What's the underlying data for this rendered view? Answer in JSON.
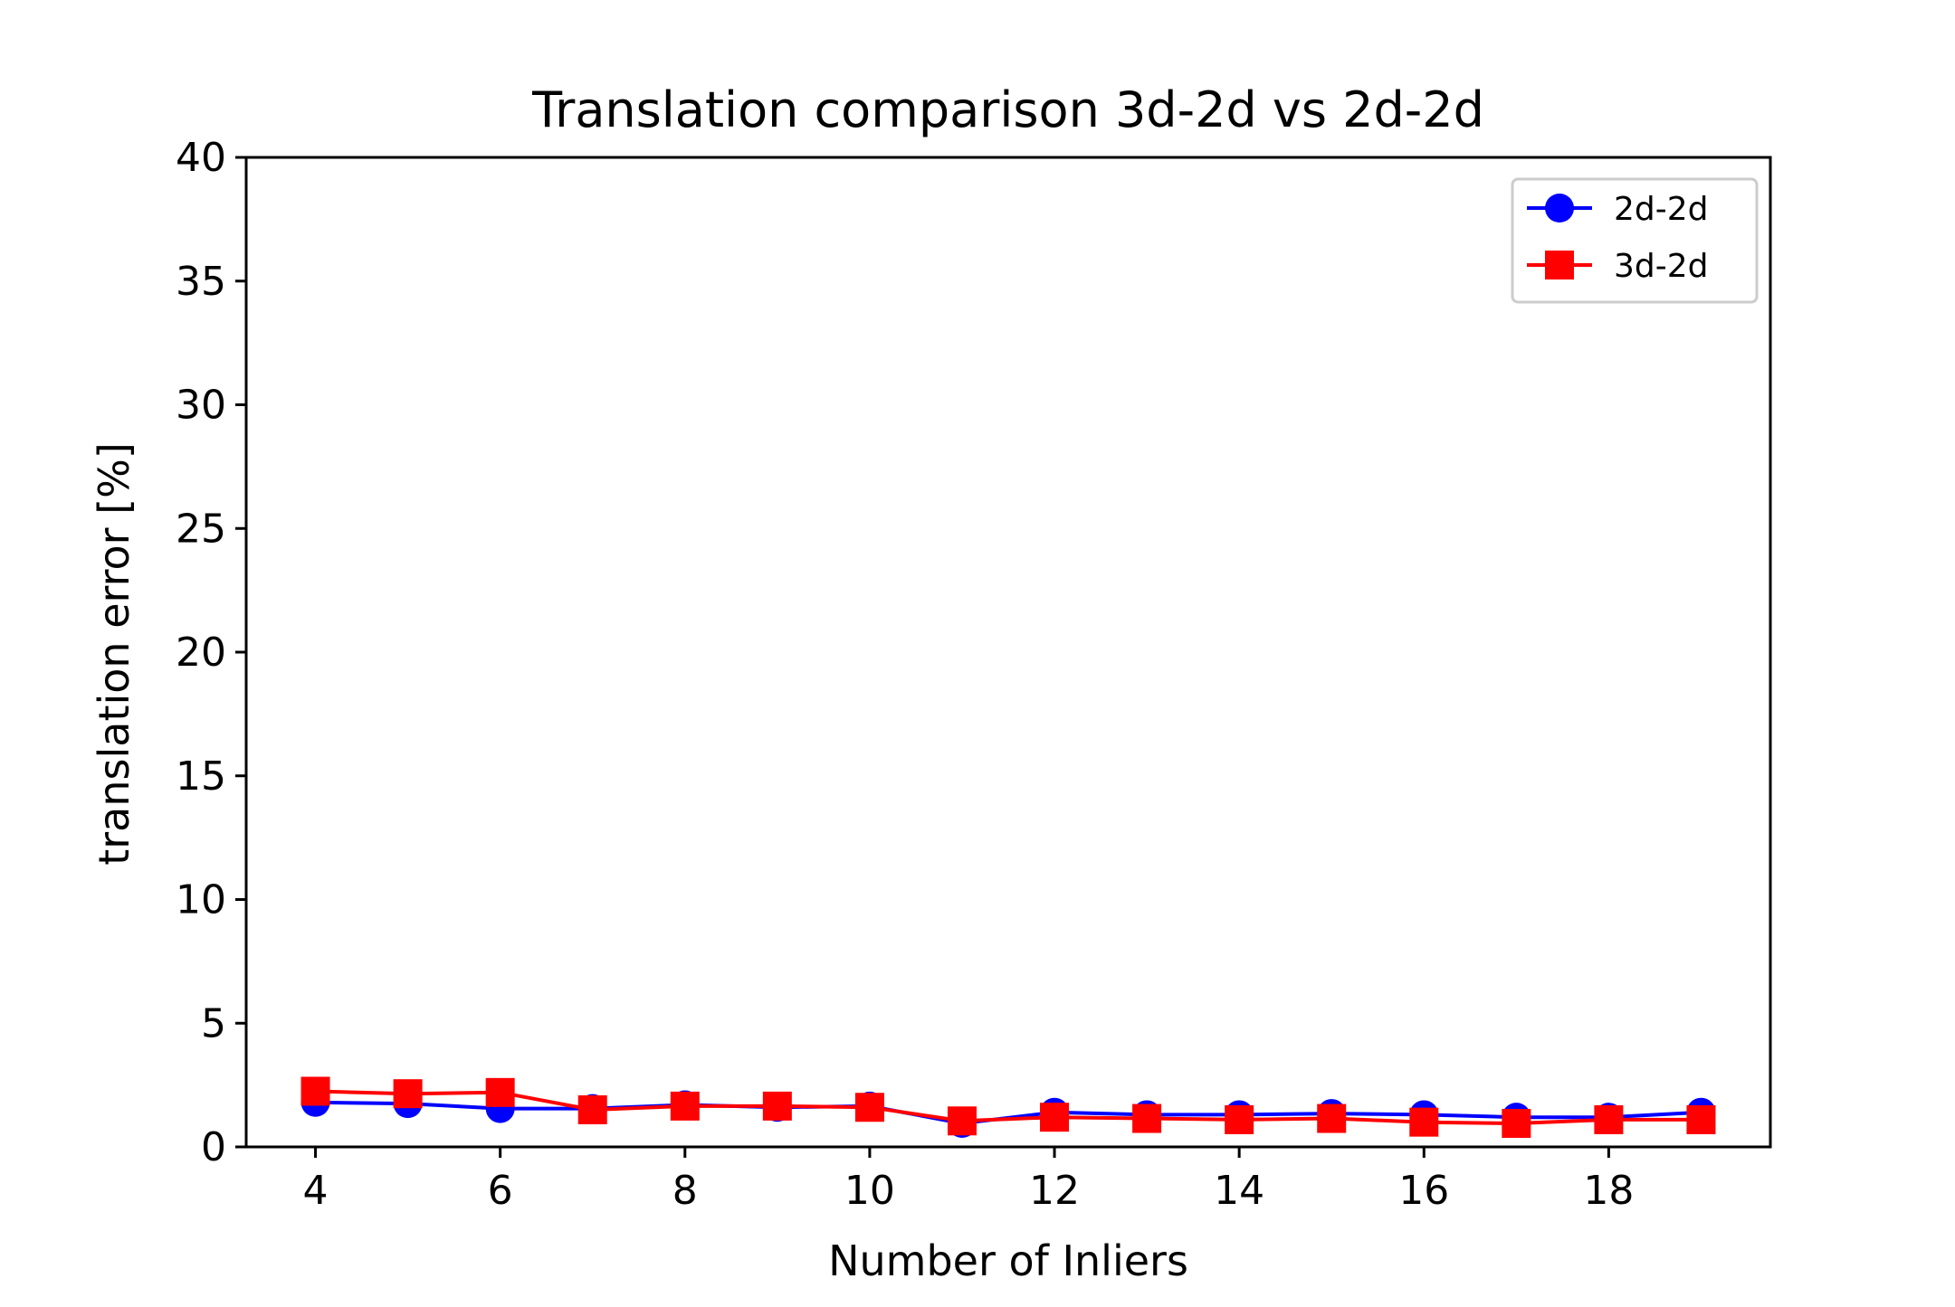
{
  "chart_data": {
    "type": "line",
    "title": "Translation comparison 3d-2d vs 2d-2d",
    "xlabel": "Number of Inliers",
    "ylabel": "translation error [%]",
    "xlim": [
      3.25,
      19.75
    ],
    "ylim": [
      0,
      40
    ],
    "xticks": [
      4,
      6,
      8,
      10,
      12,
      14,
      16,
      18
    ],
    "yticks": [
      0,
      5,
      10,
      15,
      20,
      25,
      30,
      35,
      40
    ],
    "grid": false,
    "legend_position": "top-right",
    "x": [
      4,
      5,
      6,
      7,
      8,
      9,
      10,
      11,
      12,
      13,
      14,
      15,
      16,
      17,
      18,
      19
    ],
    "series": [
      {
        "name": "2d-2d",
        "color": "#0000ff",
        "marker": "circle",
        "values": [
          1.8,
          1.75,
          1.55,
          1.55,
          1.7,
          1.6,
          1.65,
          0.95,
          1.4,
          1.3,
          1.3,
          1.35,
          1.3,
          1.2,
          1.2,
          1.4
        ]
      },
      {
        "name": "3d-2d",
        "color": "#ff0000",
        "marker": "square",
        "values": [
          2.25,
          2.15,
          2.2,
          1.5,
          1.65,
          1.65,
          1.6,
          1.05,
          1.2,
          1.15,
          1.1,
          1.15,
          1.0,
          0.95,
          1.1,
          1.1
        ]
      }
    ]
  }
}
